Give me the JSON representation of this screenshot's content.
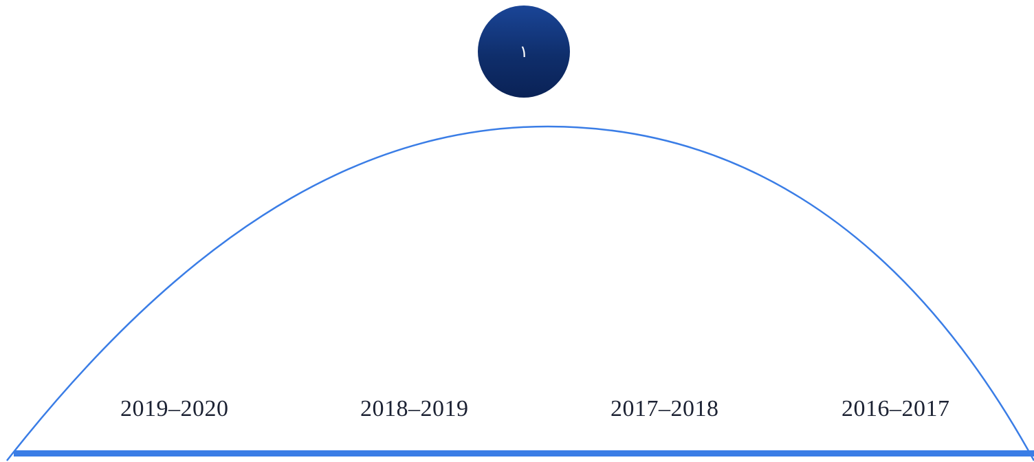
{
  "badge": {
    "label": "١"
  },
  "timeline": {
    "periods": [
      "2019–2020",
      "2018–2019",
      "2017–2018",
      "2016–2017"
    ]
  },
  "colors": {
    "arc": "#3a7de6",
    "baseline": "#3a7de6",
    "badge_top": "#1a4597",
    "badge_bottom": "#0a2256",
    "text": "#1c2233"
  }
}
